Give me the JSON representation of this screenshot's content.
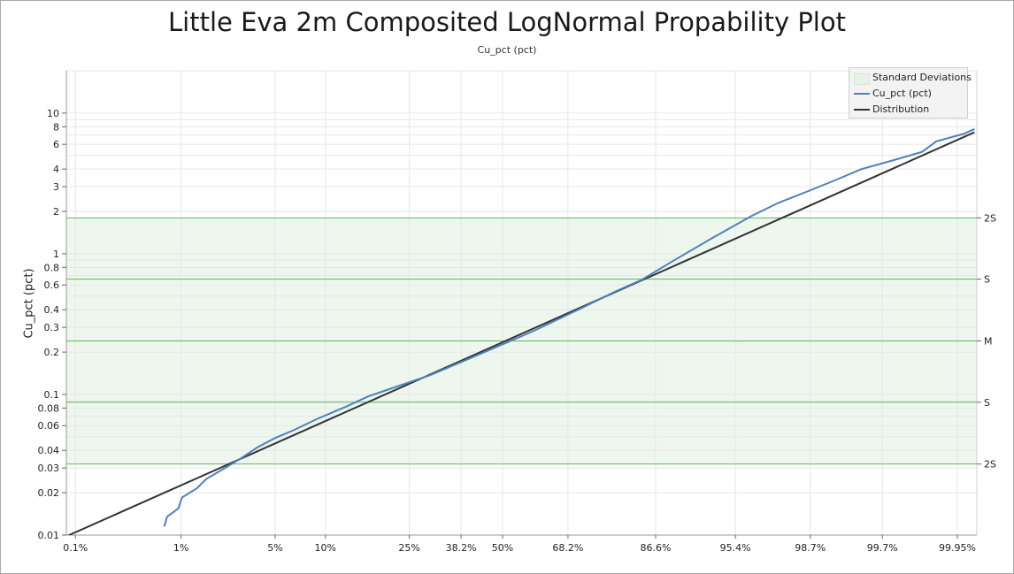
{
  "chart_data": {
    "type": "line",
    "title": "Little Eva 2m Composited LogNormal Propability Plot",
    "subtitle": "Cu_pct (pct)",
    "ylabel": "Cu_pct (pct)",
    "xlabel": "",
    "yscale": "log",
    "ylim": [
      0.01,
      20
    ],
    "xscale": "normal-probability",
    "xlim_percent": [
      0.08,
      99.97
    ],
    "y_ticks": [
      {
        "value": 0.01,
        "label": "0.01"
      },
      {
        "value": 0.02,
        "label": "0.02"
      },
      {
        "value": 0.03,
        "label": "0.03"
      },
      {
        "value": 0.04,
        "label": "0.04"
      },
      {
        "value": 0.06,
        "label": "0.06"
      },
      {
        "value": 0.08,
        "label": "0.08"
      },
      {
        "value": 0.1,
        "label": "0.1"
      },
      {
        "value": 0.2,
        "label": "0.2"
      },
      {
        "value": 0.3,
        "label": "0.3"
      },
      {
        "value": 0.4,
        "label": "0.4"
      },
      {
        "value": 0.6,
        "label": "0.6"
      },
      {
        "value": 0.8,
        "label": "0.8"
      },
      {
        "value": 1,
        "label": "1"
      },
      {
        "value": 2,
        "label": "2"
      },
      {
        "value": 3,
        "label": "3"
      },
      {
        "value": 4,
        "label": "4"
      },
      {
        "value": 6,
        "label": "6"
      },
      {
        "value": 8,
        "label": "8"
      },
      {
        "value": 10,
        "label": "10"
      }
    ],
    "x_ticks": [
      {
        "percent": 0.1,
        "label": "0.1%"
      },
      {
        "percent": 1,
        "label": "1%"
      },
      {
        "percent": 5,
        "label": "5%"
      },
      {
        "percent": 10,
        "label": "10%"
      },
      {
        "percent": 25,
        "label": "25%"
      },
      {
        "percent": 38.2,
        "label": "38.2%"
      },
      {
        "percent": 50,
        "label": "50%"
      },
      {
        "percent": 68.2,
        "label": "68.2%"
      },
      {
        "percent": 86.6,
        "label": "86.6%"
      },
      {
        "percent": 95.4,
        "label": "95.4%"
      },
      {
        "percent": 98.7,
        "label": "98.7%"
      },
      {
        "percent": 99.7,
        "label": "99.7%"
      },
      {
        "percent": 99.95,
        "label": "99.95%"
      }
    ],
    "std_lines": [
      {
        "value": 1.8,
        "label": "2S"
      },
      {
        "value": 0.66,
        "label": "S"
      },
      {
        "value": 0.24,
        "label": "M"
      },
      {
        "value": 0.088,
        "label": "S"
      },
      {
        "value": 0.032,
        "label": "2S"
      }
    ],
    "series": [
      {
        "name": "Cu_pct (pct)",
        "color": "#4f81bd",
        "points": [
          [
            0.72,
            0.0115
          ],
          [
            0.76,
            0.0135
          ],
          [
            0.95,
            0.0155
          ],
          [
            1.02,
            0.0185
          ],
          [
            1.35,
            0.0215
          ],
          [
            1.6,
            0.025
          ],
          [
            2.1,
            0.029
          ],
          [
            2.9,
            0.035
          ],
          [
            3.8,
            0.042
          ],
          [
            5.0,
            0.049
          ],
          [
            6.6,
            0.056
          ],
          [
            9.0,
            0.067
          ],
          [
            12.9,
            0.082
          ],
          [
            16.6,
            0.097
          ],
          [
            22.0,
            0.113
          ],
          [
            30.0,
            0.137
          ],
          [
            39.4,
            0.175
          ],
          [
            51.6,
            0.236
          ],
          [
            58.8,
            0.282
          ],
          [
            65.1,
            0.337
          ],
          [
            72.3,
            0.42
          ],
          [
            79.3,
            0.54
          ],
          [
            84.2,
            0.65
          ],
          [
            89.3,
            0.9
          ],
          [
            93.6,
            1.3
          ],
          [
            96.4,
            1.85
          ],
          [
            97.7,
            2.3
          ],
          [
            98.6,
            2.75
          ],
          [
            99.17,
            3.3
          ],
          [
            99.53,
            4.0
          ],
          [
            99.76,
            4.6
          ],
          [
            99.88,
            5.3
          ],
          [
            99.915,
            6.3
          ],
          [
            99.957,
            7.1
          ],
          [
            99.968,
            7.7
          ]
        ]
      },
      {
        "name": "Distribution",
        "color": "#333333",
        "points": [
          [
            0.08,
            0.0098
          ],
          [
            99.968,
            7.3
          ]
        ]
      }
    ],
    "legend": {
      "position": "top-right",
      "items": [
        {
          "label": "Standard Deviations",
          "kind": "swatch",
          "color": "#e6f3e6"
        },
        {
          "label": "Cu_pct (pct)",
          "kind": "line",
          "color": "#4f81bd"
        },
        {
          "label": "Distribution",
          "kind": "line",
          "color": "#333333"
        }
      ]
    },
    "colors": {
      "band": "#eef7ee",
      "std_line": "#55bb55",
      "grid": "#e6e6e6"
    }
  }
}
